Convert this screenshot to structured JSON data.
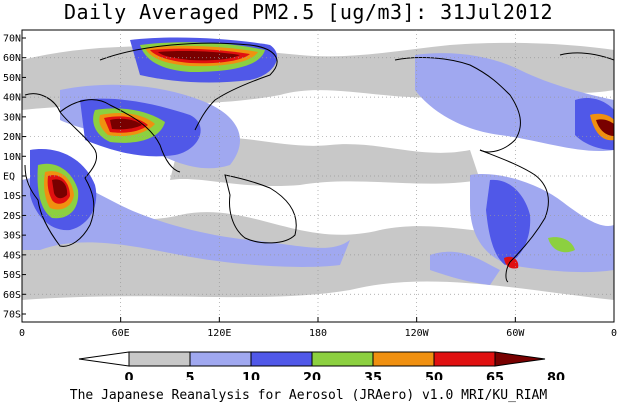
{
  "title": "Daily Averaged PM2.5 [ug/m3]: 31Jul2012",
  "credit": "The Japanese Reanalysis for Aerosol (JRAero) v1.0 MRI/KU_RIAM",
  "lat_labels": [
    "70N",
    "60N",
    "50N",
    "40N",
    "30N",
    "20N",
    "10N",
    "EQ",
    "10S",
    "20S",
    "30S",
    "40S",
    "50S",
    "60S",
    "70S"
  ],
  "lon_labels": [
    "0",
    "60E",
    "120E",
    "180",
    "120W",
    "60W",
    "0"
  ],
  "colorbar": {
    "ticks": [
      "0",
      "5",
      "10",
      "20",
      "35",
      "50",
      "65",
      "80"
    ],
    "colors": [
      "#ffffff",
      "#c8c8c8",
      "#a0a8f0",
      "#5058e8",
      "#8cd040",
      "#f09010",
      "#e01010",
      "#780000"
    ]
  }
}
